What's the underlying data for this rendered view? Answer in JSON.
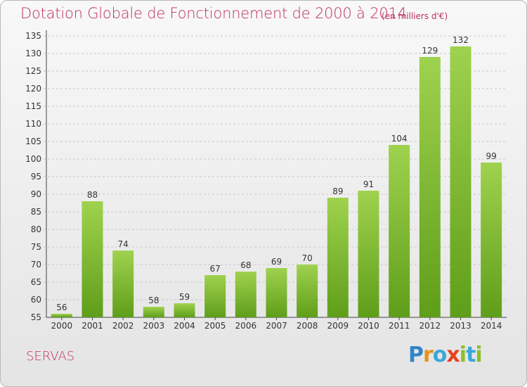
{
  "title": "Dotation Globale de Fonctionnement de 2000 à 2014",
  "unit": "(en milliers d'€)",
  "commune": "SERVAS",
  "logo": {
    "letters": [
      {
        "ch": "P",
        "color": "#2f86c8"
      },
      {
        "ch": "r",
        "color": "#e8921c"
      },
      {
        "ch": "o",
        "color": "#3aa7d8"
      },
      {
        "ch": "x",
        "color": "#e8401c"
      },
      {
        "ch": "i",
        "color": "#8cbf2b"
      },
      {
        "ch": "t",
        "color": "#3aa7d8"
      },
      {
        "ch": "i",
        "color": "#8cbf2b"
      }
    ]
  },
  "colors": {
    "title": "#c0305a",
    "bar_light": "#9fd24e",
    "bar_dark": "#5f9e1a",
    "grid": "#c8c8c8",
    "axis": "#444444"
  },
  "chart_data": {
    "type": "bar",
    "title": "Dotation Globale de Fonctionnement de 2000 à 2014",
    "subtitle": "(en milliers d'€)",
    "xlabel": "",
    "ylabel": "",
    "categories": [
      "2000",
      "2001",
      "2002",
      "2003",
      "2004",
      "2005",
      "2006",
      "2007",
      "2008",
      "2009",
      "2010",
      "2011",
      "2012",
      "2013",
      "2014"
    ],
    "values": [
      56,
      88,
      74,
      58,
      59,
      67,
      68,
      69,
      70,
      89,
      91,
      104,
      129,
      132,
      99
    ],
    "ylim": [
      55,
      135
    ],
    "yticks": [
      55,
      60,
      65,
      70,
      75,
      80,
      85,
      90,
      95,
      100,
      105,
      110,
      115,
      120,
      125,
      130,
      135
    ],
    "grid": true,
    "legend": "none"
  }
}
